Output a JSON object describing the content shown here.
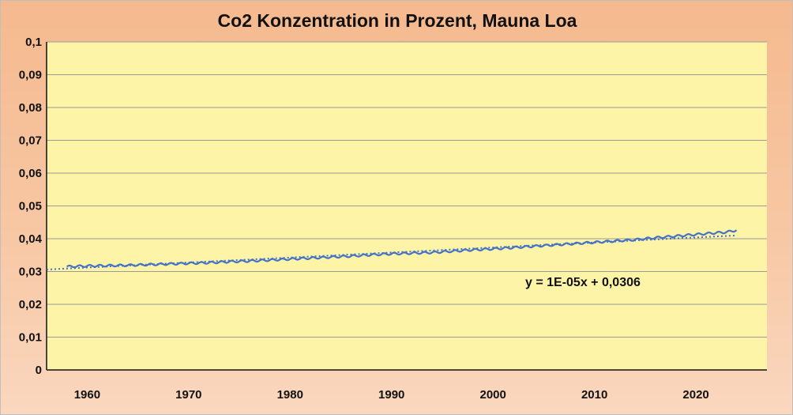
{
  "chart_data": {
    "type": "line",
    "title": "Co2 Konzentration in Prozent, Mauna Loa",
    "xlabel": "",
    "ylabel": "",
    "xlim": [
      1956,
      2027
    ],
    "ylim": [
      0,
      0.1
    ],
    "x_ticks": [
      1960,
      1970,
      1980,
      1990,
      2000,
      2010,
      2020
    ],
    "x_tick_labels": [
      "1960",
      "1970",
      "1980",
      "1990",
      "2000",
      "2010",
      "2020"
    ],
    "y_ticks": [
      0,
      0.01,
      0.02,
      0.03,
      0.04,
      0.05,
      0.06,
      0.07,
      0.08,
      0.09,
      0.1
    ],
    "y_tick_labels": [
      "0",
      "0,01",
      "0,02",
      "0,03",
      "0,04",
      "0,05",
      "0,06",
      "0,07",
      "0,08",
      "0,09",
      "0,1"
    ],
    "grid": true,
    "series": [
      {
        "x": [
          1958,
          1960,
          1962,
          1964,
          1966,
          1968,
          1970,
          1972,
          1974,
          1976,
          1978,
          1980,
          1982,
          1984,
          1986,
          1988,
          1990,
          1992,
          1994,
          1996,
          1998,
          2000,
          2002,
          2004,
          2006,
          2008,
          2010,
          2012,
          2014,
          2016,
          2018,
          2020,
          2022,
          2023,
          2024
        ],
        "values": [
          0.0315,
          0.0317,
          0.0318,
          0.0319,
          0.0321,
          0.0323,
          0.0325,
          0.0327,
          0.033,
          0.0332,
          0.0335,
          0.0338,
          0.0341,
          0.0344,
          0.0347,
          0.0351,
          0.0354,
          0.0356,
          0.0358,
          0.0362,
          0.0366,
          0.0369,
          0.0373,
          0.0377,
          0.0381,
          0.0385,
          0.0389,
          0.0393,
          0.0397,
          0.0403,
          0.0408,
          0.0413,
          0.0418,
          0.042,
          0.0426
        ],
        "seasonal_amplitude": 0.0003,
        "color": "#4472c4"
      }
    ],
    "trendline": {
      "type": "linear",
      "x_start": 1956,
      "x_end": 2024,
      "y_start": 0.0306,
      "y_end": 0.041,
      "equation": "y = 1E-05x + 0,0306",
      "color": "#4472c4",
      "style": "dotted"
    }
  }
}
